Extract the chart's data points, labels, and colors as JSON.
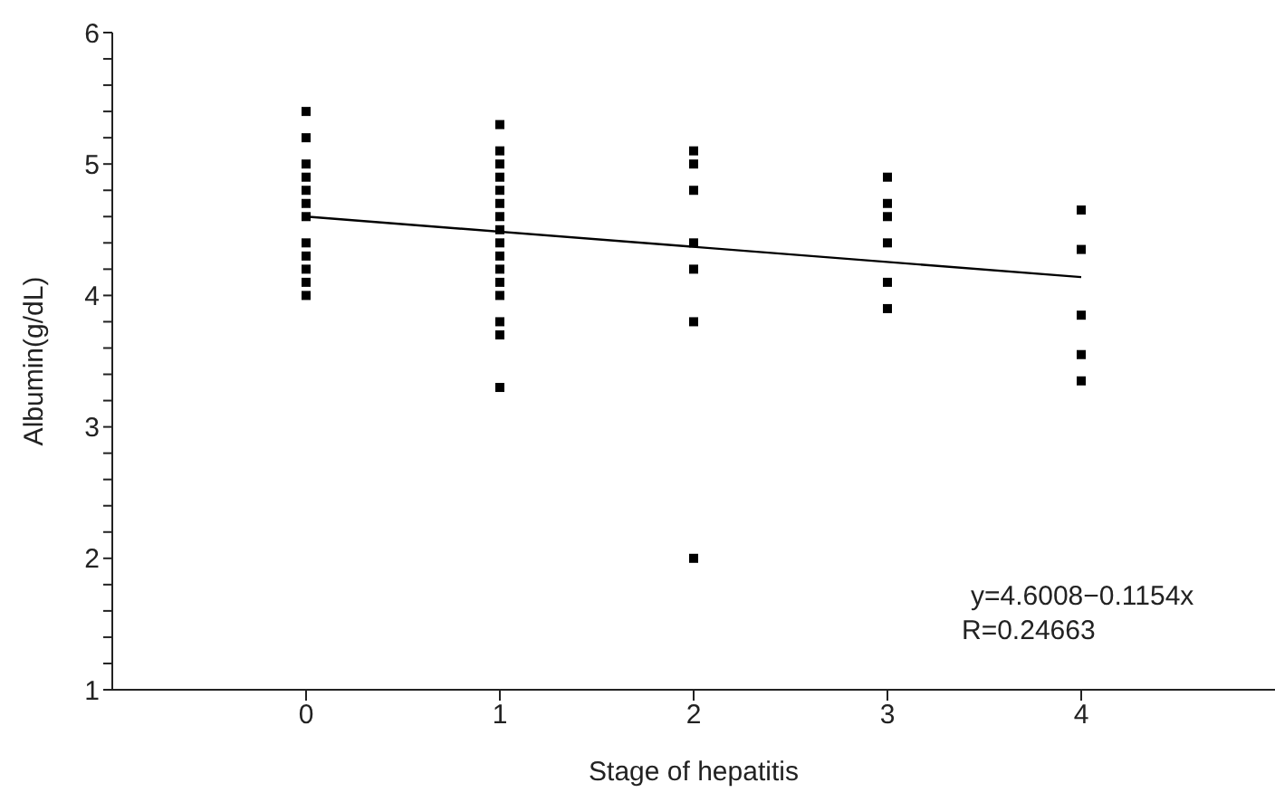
{
  "chart_data": {
    "type": "scatter",
    "xlabel": "Stage of hepatitis",
    "ylabel": "Albumin(g/dL)",
    "xlim": [
      -1,
      5
    ],
    "xticks": [
      0,
      1,
      2,
      3,
      4
    ],
    "ylim": [
      1,
      6
    ],
    "yticks": [
      1,
      {
        "value": 1.2,
        "label": null
      },
      {
        "value": 1.4,
        "label": null
      },
      {
        "value": 1.6,
        "label": null
      },
      {
        "value": 1.8,
        "label": null
      },
      2,
      {
        "value": 2.2,
        "label": null
      },
      {
        "value": 2.4,
        "label": null
      },
      {
        "value": 2.6,
        "label": null
      },
      {
        "value": 2.8,
        "label": null
      },
      3,
      {
        "value": 3.2,
        "label": null
      },
      {
        "value": 3.4,
        "label": null
      },
      {
        "value": 3.6,
        "label": null
      },
      {
        "value": 3.8,
        "label": null
      },
      4,
      {
        "value": 4.2,
        "label": null
      },
      {
        "value": 4.4,
        "label": null
      },
      {
        "value": 4.6,
        "label": null
      },
      {
        "value": 4.8,
        "label": null
      },
      5,
      {
        "value": 5.2,
        "label": null
      },
      {
        "value": 5.4,
        "label": null
      },
      {
        "value": 5.6,
        "label": null
      },
      {
        "value": 5.8,
        "label": null
      },
      6
    ],
    "marker": "square",
    "series": [
      {
        "color": "#000000",
        "x": [
          0,
          0,
          0,
          0,
          0,
          0,
          0,
          0,
          0,
          0,
          0,
          0,
          1,
          1,
          1,
          1,
          1,
          1,
          1,
          1,
          1,
          1,
          1,
          1,
          1,
          1,
          1,
          1,
          2,
          2,
          2,
          2,
          2,
          2,
          2,
          3,
          3,
          3,
          3,
          3,
          3,
          4,
          4,
          4,
          4,
          4
        ],
        "values": [
          5.4,
          5.2,
          5.0,
          4.9,
          4.8,
          4.7,
          4.6,
          4.4,
          4.3,
          4.2,
          4.1,
          4.0,
          5.3,
          5.1,
          5.0,
          4.9,
          4.8,
          4.7,
          4.6,
          4.5,
          4.4,
          4.3,
          4.2,
          4.1,
          4.0,
          3.8,
          3.7,
          3.3,
          5.1,
          5.0,
          4.8,
          4.4,
          4.2,
          3.8,
          2.0,
          4.9,
          4.7,
          4.6,
          4.4,
          4.1,
          3.9,
          4.65,
          4.35,
          3.85,
          3.55,
          3.35
        ]
      },
      {
        "type": "line",
        "color": "#000000",
        "marker": "none",
        "x": [
          0,
          4
        ],
        "values": [
          4.6,
          4.14
        ]
      }
    ],
    "annotations": [
      "y=4.6008−0.1154x",
      "R=0.24663"
    ]
  }
}
